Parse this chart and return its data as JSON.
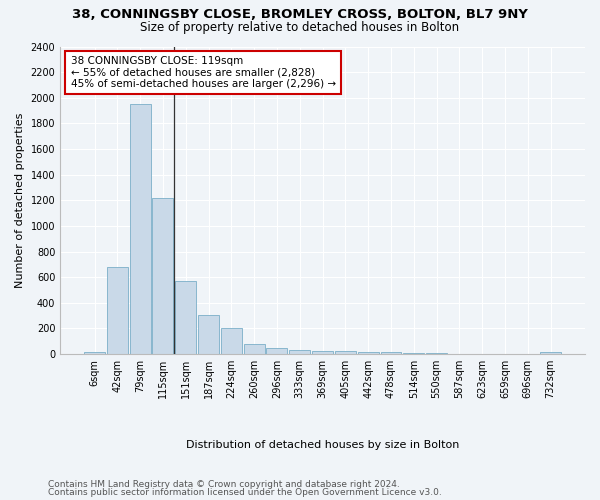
{
  "title": "38, CONNINGSBY CLOSE, BROMLEY CROSS, BOLTON, BL7 9NY",
  "subtitle": "Size of property relative to detached houses in Bolton",
  "xlabel": "Distribution of detached houses by size in Bolton",
  "ylabel": "Number of detached properties",
  "bar_labels": [
    "6sqm",
    "42sqm",
    "79sqm",
    "115sqm",
    "151sqm",
    "187sqm",
    "224sqm",
    "260sqm",
    "296sqm",
    "333sqm",
    "369sqm",
    "405sqm",
    "442sqm",
    "478sqm",
    "514sqm",
    "550sqm",
    "587sqm",
    "623sqm",
    "659sqm",
    "696sqm",
    "732sqm"
  ],
  "bar_values": [
    15,
    680,
    1950,
    1220,
    570,
    305,
    200,
    80,
    45,
    35,
    28,
    28,
    20,
    18,
    12,
    5,
    3,
    2,
    2,
    2,
    18
  ],
  "bar_color": "#c9d9e8",
  "bar_edge_color": "#7aafc8",
  "annotation_line1": "38 CONNINGSBY CLOSE: 119sqm",
  "annotation_line2": "← 55% of detached houses are smaller (2,828)",
  "annotation_line3": "45% of semi-detached houses are larger (2,296) →",
  "annotation_box_color": "#ffffff",
  "annotation_edge_color": "#cc0000",
  "ylim": [
    0,
    2400
  ],
  "yticks": [
    0,
    200,
    400,
    600,
    800,
    1000,
    1200,
    1400,
    1600,
    1800,
    2000,
    2200,
    2400
  ],
  "footer_line1": "Contains HM Land Registry data © Crown copyright and database right 2024.",
  "footer_line2": "Contains public sector information licensed under the Open Government Licence v3.0.",
  "background_color": "#f0f4f8",
  "grid_color": "#ffffff",
  "title_fontsize": 9.5,
  "subtitle_fontsize": 8.5,
  "axis_label_fontsize": 8,
  "tick_fontsize": 7,
  "annotation_fontsize": 7.5,
  "footer_fontsize": 6.5
}
